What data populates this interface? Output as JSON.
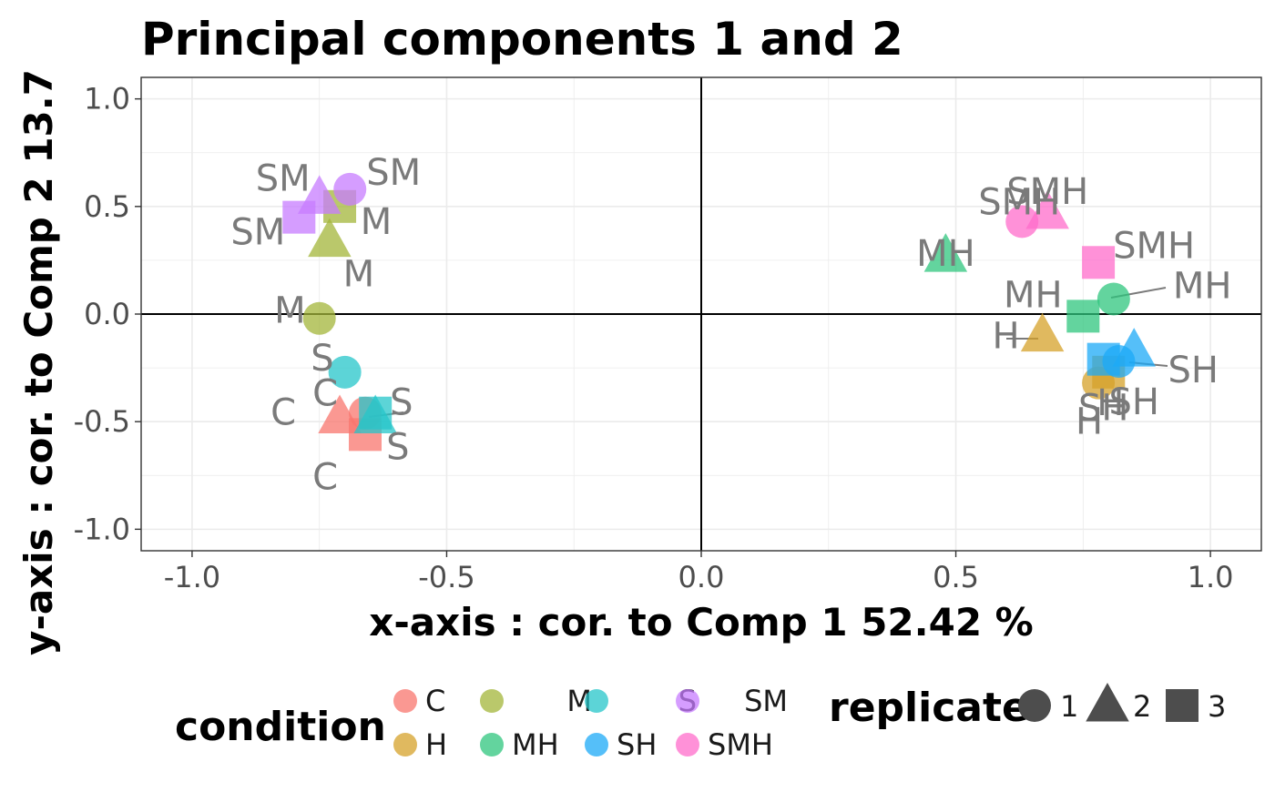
{
  "chart_data": {
    "type": "scatter",
    "title": "Principal components 1 and 2",
    "xlabel": "x-axis : cor. to Comp  1   52.42 %",
    "ylabel": "y-axis : cor. to Comp  2   13.7",
    "xlim": [
      -1.1,
      1.1
    ],
    "ylim": [
      -1.1,
      1.1
    ],
    "x_ticks": [
      -1.0,
      -0.5,
      0.0,
      0.5,
      1.0
    ],
    "y_ticks": [
      -1.0,
      -0.5,
      0.0,
      0.5,
      1.0
    ],
    "x_tick_labels": [
      "-1.0",
      "-0.5",
      "0.0",
      "0.5",
      "1.0"
    ],
    "y_tick_labels": [
      "1.0",
      "0.5",
      "0.0",
      "-0.5",
      "-1.0"
    ],
    "grid": true,
    "reference_lines": {
      "x": 0,
      "y": 0
    },
    "legend_placement": "bottom",
    "condition_legend": {
      "title": "condition",
      "entries": [
        {
          "label": "C",
          "color": "#f8766d"
        },
        {
          "label": "M",
          "color": "#a3b53a"
        },
        {
          "label": "S",
          "color": "#26c6c9"
        },
        {
          "label": "SM",
          "color": "#c77cff"
        },
        {
          "label": "H",
          "color": "#d6a22a"
        },
        {
          "label": "MH",
          "color": "#2fc57d"
        },
        {
          "label": "SH",
          "color": "#1caaf7"
        },
        {
          "label": "SMH",
          "color": "#ff6ccb"
        }
      ]
    },
    "replicate_legend": {
      "title": "replicate",
      "entries": [
        {
          "label": "1",
          "shape": "circle"
        },
        {
          "label": "2",
          "shape": "triangle"
        },
        {
          "label": "3",
          "shape": "square"
        }
      ]
    },
    "points": [
      {
        "condition": "C",
        "replicate": "1",
        "x": -0.66,
        "y": -0.46,
        "label": "C"
      },
      {
        "condition": "C",
        "replicate": "2",
        "x": -0.71,
        "y": -0.48,
        "label": "C"
      },
      {
        "condition": "C",
        "replicate": "3",
        "x": -0.66,
        "y": -0.56,
        "label": "C"
      },
      {
        "condition": "M",
        "replicate": "1",
        "x": -0.75,
        "y": -0.02,
        "label": "M"
      },
      {
        "condition": "M",
        "replicate": "2",
        "x": -0.73,
        "y": 0.34,
        "label": "M"
      },
      {
        "condition": "M",
        "replicate": "3",
        "x": -0.71,
        "y": 0.5,
        "label": "M"
      },
      {
        "condition": "S",
        "replicate": "1",
        "x": -0.7,
        "y": -0.27,
        "label": "S"
      },
      {
        "condition": "S",
        "replicate": "2",
        "x": -0.64,
        "y": -0.48,
        "label": "S"
      },
      {
        "condition": "S",
        "replicate": "3",
        "x": -0.64,
        "y": -0.46,
        "label": "S"
      },
      {
        "condition": "SM",
        "replicate": "1",
        "x": -0.69,
        "y": 0.58,
        "label": "SM"
      },
      {
        "condition": "SM",
        "replicate": "2",
        "x": -0.75,
        "y": 0.54,
        "label": "SM"
      },
      {
        "condition": "SM",
        "replicate": "3",
        "x": -0.79,
        "y": 0.45,
        "label": "SM"
      },
      {
        "condition": "H",
        "replicate": "1",
        "x": 0.78,
        "y": -0.32,
        "label": "H"
      },
      {
        "condition": "H",
        "replicate": "2",
        "x": 0.67,
        "y": -0.1,
        "label": "H"
      },
      {
        "condition": "H",
        "replicate": "3",
        "x": 0.8,
        "y": -0.27,
        "label": "H"
      },
      {
        "condition": "MH",
        "replicate": "1",
        "x": 0.81,
        "y": 0.07,
        "label": "MH"
      },
      {
        "condition": "MH",
        "replicate": "2",
        "x": 0.48,
        "y": 0.27,
        "label": "MH"
      },
      {
        "condition": "MH",
        "replicate": "3",
        "x": 0.75,
        "y": -0.01,
        "label": "MH"
      },
      {
        "condition": "SH",
        "replicate": "1",
        "x": 0.82,
        "y": -0.22,
        "label": "SH"
      },
      {
        "condition": "SH",
        "replicate": "2",
        "x": 0.85,
        "y": -0.17,
        "label": "SH"
      },
      {
        "condition": "SH",
        "replicate": "3",
        "x": 0.79,
        "y": -0.21,
        "label": "SH"
      },
      {
        "condition": "SMH",
        "replicate": "1",
        "x": 0.63,
        "y": 0.43,
        "label": "SMH"
      },
      {
        "condition": "SMH",
        "replicate": "2",
        "x": 0.68,
        "y": 0.47,
        "label": "SMH"
      },
      {
        "condition": "SMH",
        "replicate": "3",
        "x": 0.78,
        "y": 0.24,
        "label": "SMH"
      }
    ]
  }
}
